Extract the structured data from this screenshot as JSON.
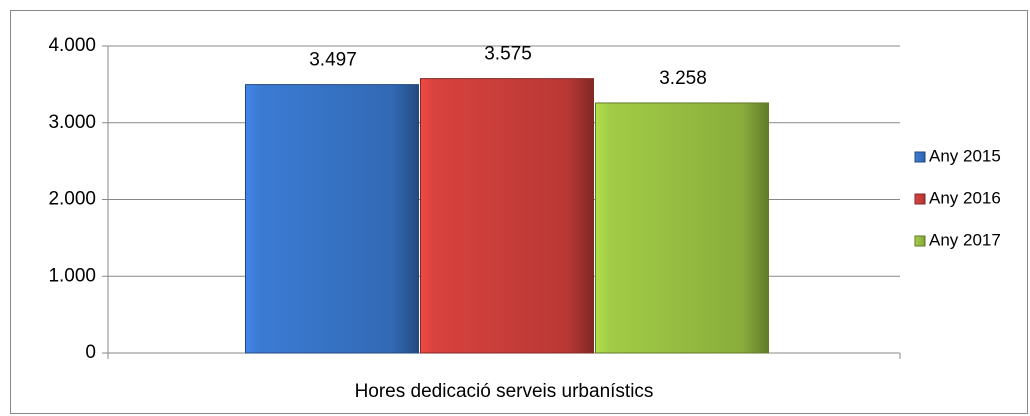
{
  "chart_data": {
    "type": "bar",
    "categories": [
      "Hores dedicació serveis urbanístics"
    ],
    "series": [
      {
        "name": "Any 2015",
        "color": "#3b7bd4",
        "values": [
          3497
        ],
        "value_labels": [
          "3.497"
        ]
      },
      {
        "name": "Any 2016",
        "color": "#d9423e",
        "values": [
          3575
        ],
        "value_labels": [
          "3.575"
        ]
      },
      {
        "name": "Any 2017",
        "color": "#a2cc46",
        "values": [
          3258
        ],
        "value_labels": [
          "3.258"
        ]
      }
    ],
    "ylim": [
      0,
      4000
    ],
    "yticks": [
      {
        "value": 0,
        "label": "0"
      },
      {
        "value": 1000,
        "label": "1.000"
      },
      {
        "value": 2000,
        "label": "2.000"
      },
      {
        "value": 3000,
        "label": "3.000"
      },
      {
        "value": 4000,
        "label": "4.000"
      }
    ],
    "grid": true,
    "legend": "right"
  }
}
